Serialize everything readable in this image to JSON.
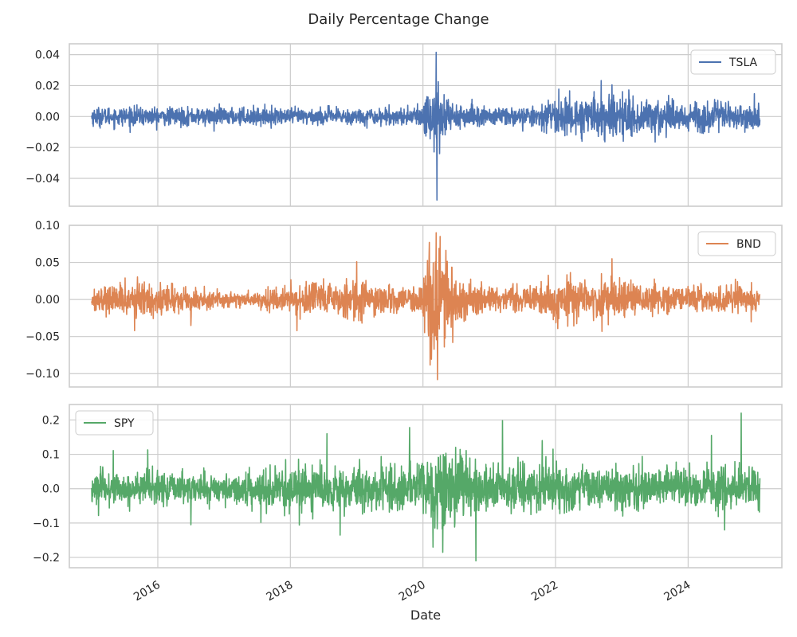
{
  "chart_data": {
    "type": "line",
    "title": "Daily Percentage Change",
    "xlabel": "Date",
    "x_ticks": [
      "2016",
      "2018",
      "2020",
      "2022",
      "2024"
    ],
    "x_range": [
      "2014-09-01",
      "2025-06-01"
    ],
    "x_start": "2015-01-02",
    "x_end": "2025-01-31",
    "grid": true,
    "subplots": [
      {
        "series_name": "TSLA",
        "color": "#4c72b0",
        "legend_loc": "upper right",
        "ylim": [
          -0.058,
          0.047
        ],
        "y_ticks": [
          0.04,
          0.02,
          0.0,
          -0.02,
          -0.04
        ],
        "y_tick_labels": [
          "0.04",
          "0.02",
          "0.00",
          "−0.02",
          "−0.04"
        ],
        "volatility_profile": [
          [
            2015.0,
            0.003
          ],
          [
            2016.5,
            0.0028
          ],
          [
            2018.0,
            0.0026
          ],
          [
            2019.9,
            0.0026
          ],
          [
            2020.2,
            0.012
          ],
          [
            2020.5,
            0.004
          ],
          [
            2021.0,
            0.003
          ],
          [
            2021.8,
            0.003
          ],
          [
            2022.0,
            0.006
          ],
          [
            2022.8,
            0.007
          ],
          [
            2023.5,
            0.006
          ],
          [
            2024.0,
            0.005
          ],
          [
            2025.1,
            0.004
          ]
        ],
        "spikes": [
          [
            2020.2,
            0.0415
          ],
          [
            2020.21,
            -0.054
          ],
          [
            2020.23,
            0.0225
          ],
          [
            2020.25,
            -0.024
          ],
          [
            2022.85,
            0.0205
          ],
          [
            2022.4,
            -0.016
          ],
          [
            2016.85,
            -0.0095
          ],
          [
            2024.4,
            0.011
          ]
        ]
      },
      {
        "series_name": "BND",
        "color": "#dd8452",
        "legend_loc": "upper right",
        "ylim": [
          -0.118,
          0.1
        ],
        "y_ticks": [
          0.1,
          0.05,
          0.0,
          -0.05,
          -0.1
        ],
        "y_tick_labels": [
          "0.10",
          "0.05",
          "0.00",
          "−0.05",
          "−0.10"
        ],
        "volatility_profile": [
          [
            2015.0,
            0.007
          ],
          [
            2015.6,
            0.012
          ],
          [
            2016.2,
            0.009
          ],
          [
            2016.8,
            0.006
          ],
          [
            2017.5,
            0.005
          ],
          [
            2018.0,
            0.009
          ],
          [
            2018.8,
            0.012
          ],
          [
            2019.9,
            0.008
          ],
          [
            2020.2,
            0.04
          ],
          [
            2020.6,
            0.012
          ],
          [
            2021.0,
            0.008
          ],
          [
            2021.8,
            0.009
          ],
          [
            2022.0,
            0.014
          ],
          [
            2022.8,
            0.014
          ],
          [
            2023.5,
            0.01
          ],
          [
            2024.0,
            0.008
          ],
          [
            2025.1,
            0.008
          ]
        ],
        "spikes": [
          [
            2015.65,
            0.038
          ],
          [
            2015.65,
            -0.042
          ],
          [
            2016.5,
            -0.035
          ],
          [
            2018.1,
            -0.042
          ],
          [
            2019.0,
            0.051
          ],
          [
            2020.2,
            0.09
          ],
          [
            2020.22,
            -0.108
          ],
          [
            2020.26,
            0.085
          ],
          [
            2020.45,
            -0.058
          ],
          [
            2022.85,
            0.055
          ],
          [
            2022.7,
            -0.043
          ],
          [
            2024.95,
            -0.03
          ]
        ]
      },
      {
        "series_name": "SPY",
        "color": "#55a868",
        "legend_loc": "upper left",
        "ylim": [
          -0.23,
          0.245
        ],
        "y_ticks": [
          0.2,
          0.1,
          0.0,
          -0.1,
          -0.2
        ],
        "y_tick_labels": [
          "0.2",
          "0.1",
          "0.0",
          "−0.1",
          "−0.2"
        ],
        "volatility_profile": [
          [
            2015.0,
            0.025
          ],
          [
            2016.0,
            0.025
          ],
          [
            2017.0,
            0.018
          ],
          [
            2018.0,
            0.03
          ],
          [
            2019.0,
            0.032
          ],
          [
            2019.9,
            0.03
          ],
          [
            2020.2,
            0.06
          ],
          [
            2020.6,
            0.045
          ],
          [
            2021.0,
            0.035
          ],
          [
            2022.0,
            0.035
          ],
          [
            2023.0,
            0.03
          ],
          [
            2024.0,
            0.028
          ],
          [
            2025.1,
            0.03
          ]
        ],
        "spikes": [
          [
            2015.85,
            0.113
          ],
          [
            2016.5,
            -0.105
          ],
          [
            2018.55,
            0.16
          ],
          [
            2018.75,
            0.175
          ],
          [
            2018.75,
            -0.135
          ],
          [
            2019.8,
            0.178
          ],
          [
            2020.15,
            0.2
          ],
          [
            2020.15,
            -0.17
          ],
          [
            2020.3,
            -0.185
          ],
          [
            2020.8,
            -0.21
          ],
          [
            2021.2,
            0.198
          ],
          [
            2021.8,
            0.14
          ],
          [
            2024.35,
            0.155
          ],
          [
            2024.8,
            0.22
          ],
          [
            2024.55,
            -0.12
          ]
        ]
      }
    ]
  }
}
